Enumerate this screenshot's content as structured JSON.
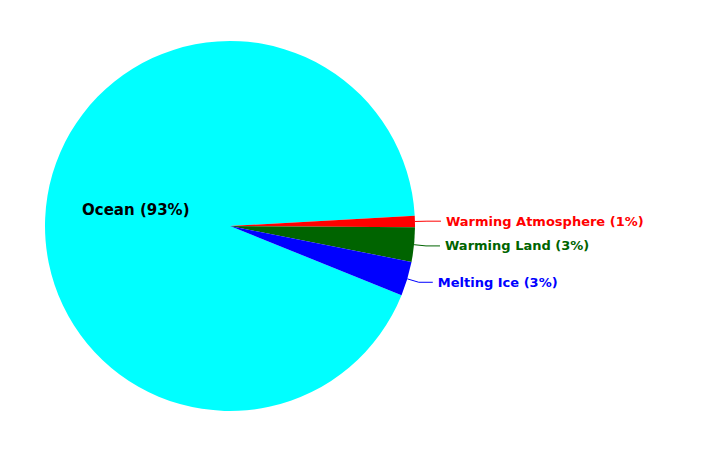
{
  "chart_data": {
    "type": "pie",
    "categories": [
      "Ocean (93%)",
      "Warming Atmosphere (1%)",
      "Warming Land (3%)",
      "Melting Ice (3%)"
    ],
    "values": [
      93,
      1,
      3,
      3
    ],
    "colors": [
      "#00FFFF",
      "#FF0000",
      "#006400",
      "#0000FF"
    ]
  }
}
